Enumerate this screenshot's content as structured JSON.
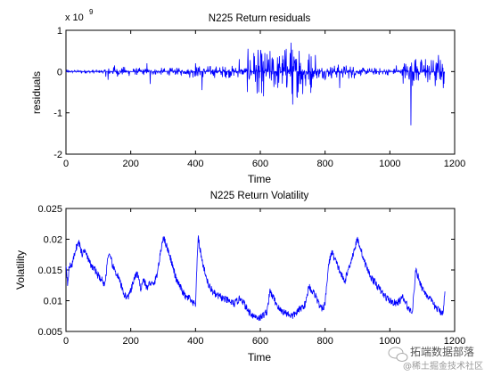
{
  "chart_data": [
    {
      "type": "line",
      "title": "N225  Return residuals",
      "xlabel": "Time",
      "ylabel": "residuals",
      "exponent_label": "x 10",
      "exponent_power": "9",
      "xlim": [
        0,
        1200
      ],
      "ylim": [
        -2,
        1
      ],
      "xticks": [
        0,
        200,
        400,
        600,
        800,
        1000,
        1200
      ],
      "yticks": [
        -2,
        -1,
        0,
        1
      ],
      "grid": false,
      "line_color": "#0000ff",
      "series": [
        {
          "n_points": 1170,
          "baseline": 0,
          "noise_amplitude_segments": [
            {
              "x": [
                0,
                120
              ],
              "amp": 0.03
            },
            {
              "x": [
                120,
                200
              ],
              "amp": 0.08
            },
            {
              "x": [
                200,
                380
              ],
              "amp": 0.06
            },
            {
              "x": [
                380,
                560
              ],
              "amp": 0.1
            },
            {
              "x": [
                560,
                660
              ],
              "amp": 0.35
            },
            {
              "x": [
                660,
                760
              ],
              "amp": 0.4
            },
            {
              "x": [
                760,
                900
              ],
              "amp": 0.12
            },
            {
              "x": [
                900,
                1040
              ],
              "amp": 0.06
            },
            {
              "x": [
                1040,
                1170
              ],
              "amp": 0.22
            }
          ],
          "spikes": [
            {
              "x": 130,
              "y": -0.2
            },
            {
              "x": 150,
              "y": 0.15
            },
            {
              "x": 250,
              "y": 0.2
            },
            {
              "x": 260,
              "y": -0.3
            },
            {
              "x": 400,
              "y": 0.2
            },
            {
              "x": 420,
              "y": -0.45
            },
            {
              "x": 535,
              "y": 0.3
            },
            {
              "x": 580,
              "y": 0.45
            },
            {
              "x": 595,
              "y": -0.5
            },
            {
              "x": 610,
              "y": -0.6
            },
            {
              "x": 640,
              "y": 0.3
            },
            {
              "x": 680,
              "y": 0.55
            },
            {
              "x": 695,
              "y": 0.7
            },
            {
              "x": 700,
              "y": -0.8
            },
            {
              "x": 720,
              "y": 0.5
            },
            {
              "x": 740,
              "y": -0.35
            },
            {
              "x": 770,
              "y": 0.4
            },
            {
              "x": 845,
              "y": -0.4
            },
            {
              "x": 1020,
              "y": 0.15
            },
            {
              "x": 1065,
              "y": -1.3
            },
            {
              "x": 1080,
              "y": 0.3
            },
            {
              "x": 1110,
              "y": 0.3
            },
            {
              "x": 1140,
              "y": -0.35
            },
            {
              "x": 1150,
              "y": 0.4
            },
            {
              "x": 1165,
              "y": -0.4
            }
          ]
        }
      ]
    },
    {
      "type": "line",
      "title": "N225 Return Volatility",
      "xlabel": "Time",
      "ylabel": "Volatility",
      "xlim": [
        0,
        1200
      ],
      "ylim": [
        0.005,
        0.025
      ],
      "xticks": [
        0,
        200,
        400,
        600,
        800,
        1000,
        1200
      ],
      "yticks": [
        0.005,
        0.01,
        0.015,
        0.02,
        0.025
      ],
      "ytick_labels": [
        "0.005",
        "0.01",
        "0.015",
        "0.02",
        "0.025"
      ],
      "grid": false,
      "line_color": "#0000ff",
      "series": [
        {
          "x": [
            0,
            5,
            10,
            20,
            30,
            40,
            50,
            60,
            70,
            80,
            90,
            100,
            110,
            120,
            130,
            140,
            145,
            150,
            160,
            170,
            180,
            190,
            200,
            210,
            220,
            230,
            240,
            250,
            260,
            270,
            280,
            290,
            300,
            310,
            320,
            330,
            340,
            350,
            360,
            370,
            380,
            390,
            400,
            408,
            412,
            420,
            430,
            440,
            460,
            480,
            500,
            520,
            540,
            560,
            580,
            600,
            620,
            630,
            640,
            660,
            680,
            700,
            720,
            740,
            750,
            760,
            770,
            780,
            790,
            800,
            810,
            820,
            840,
            860,
            880,
            900,
            910,
            920,
            940,
            960,
            980,
            1000,
            1020,
            1040,
            1060,
            1070,
            1080,
            1100,
            1120,
            1140,
            1160,
            1165,
            1170
          ],
          "y": [
            0.016,
            0.013,
            0.0155,
            0.016,
            0.0185,
            0.0195,
            0.0175,
            0.0185,
            0.0165,
            0.0155,
            0.015,
            0.014,
            0.0135,
            0.0125,
            0.0175,
            0.0165,
            0.0155,
            0.015,
            0.014,
            0.0125,
            0.011,
            0.0105,
            0.0115,
            0.0135,
            0.0145,
            0.012,
            0.0135,
            0.012,
            0.013,
            0.0125,
            0.014,
            0.017,
            0.0205,
            0.019,
            0.0175,
            0.0155,
            0.0135,
            0.0125,
            0.0115,
            0.0105,
            0.0105,
            0.0095,
            0.0095,
            0.0205,
            0.019,
            0.0165,
            0.0145,
            0.0125,
            0.011,
            0.0105,
            0.01,
            0.0095,
            0.0105,
            0.0085,
            0.0075,
            0.0072,
            0.0082,
            0.0115,
            0.0105,
            0.0085,
            0.008,
            0.0075,
            0.0085,
            0.0095,
            0.0125,
            0.0115,
            0.011,
            0.0095,
            0.0085,
            0.0095,
            0.0155,
            0.018,
            0.0155,
            0.013,
            0.0165,
            0.02,
            0.0185,
            0.0165,
            0.014,
            0.0125,
            0.011,
            0.01,
            0.0095,
            0.0105,
            0.0085,
            0.0085,
            0.015,
            0.012,
            0.0105,
            0.009,
            0.008,
            0.0085,
            0.0115
          ]
        }
      ]
    }
  ],
  "watermark": {
    "line1": "拓端数据部落",
    "line2": "@稀土掘金技术社区"
  }
}
